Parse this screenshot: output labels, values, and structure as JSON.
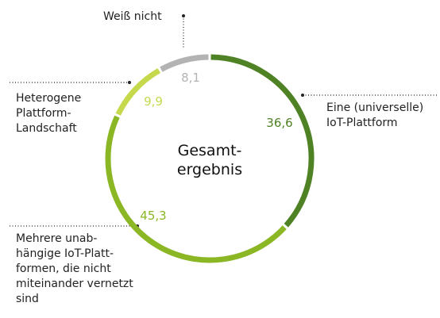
{
  "chart_data": {
    "type": "pie",
    "center_label": [
      "Gesamt-",
      "ergebnis"
    ],
    "categories": [
      "Eine (universelle)\nIoT-Plattform",
      "Mehrere unab-\nhängige IoT-Platt-\nformen, die nicht\nmiteinander vernetzt\nsind",
      "Heterogene\nPlattform-\nLandschaft",
      "Weiß nicht"
    ],
    "values": [
      36.6,
      45.3,
      9.9,
      8.1
    ],
    "value_labels": [
      "36,6",
      "45,3",
      "9,9",
      "8,1"
    ],
    "colors": [
      "#4e8224",
      "#8bb725",
      "#c6d94c",
      "#b3b3b3"
    ]
  }
}
